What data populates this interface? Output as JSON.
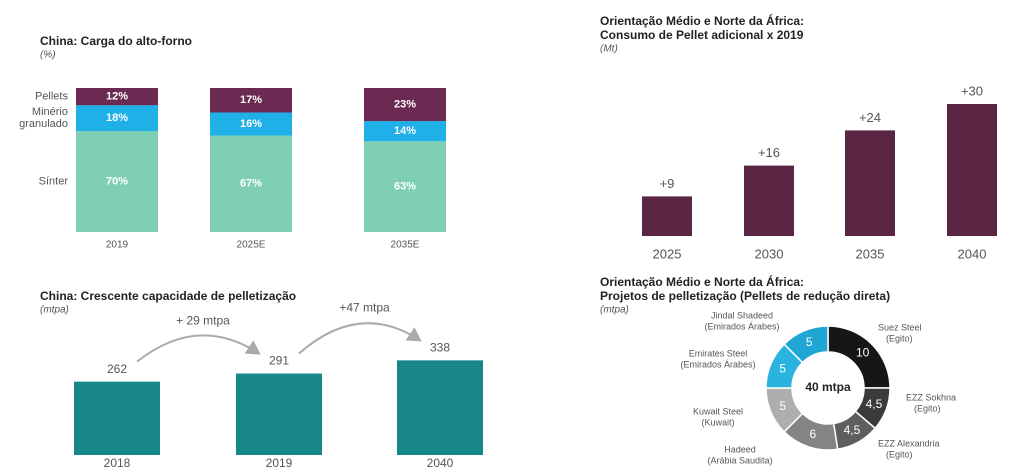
{
  "chart_data": [
    {
      "type": "stacked_bar",
      "title": "China: Carga do alto-forno",
      "subtitle": "(%)",
      "categories": [
        "2019",
        "2025E",
        "2035E"
      ],
      "series": [
        {
          "name": "Sínter",
          "color": "#7fcfb4",
          "values": [
            70,
            67,
            63
          ],
          "value_labels": [
            "70%",
            "67%",
            "63%"
          ]
        },
        {
          "name": "Minério granulado",
          "color": "#1eb0e6",
          "values": [
            18,
            16,
            14
          ],
          "value_labels": [
            "18%",
            "16%",
            "14%"
          ]
        },
        {
          "name": "Pellets",
          "color": "#6b2a52",
          "values": [
            12,
            17,
            23
          ],
          "value_labels": [
            "12%",
            "17%",
            "23%"
          ]
        }
      ]
    },
    {
      "type": "bar",
      "title": "Orientação Médio e Norte da África:",
      "title2": "Consumo de Pellet adicional x 2019",
      "subtitle": "(Mt)",
      "categories": [
        "2025",
        "2030",
        "2035",
        "2040"
      ],
      "values": [
        9,
        16,
        24,
        30
      ],
      "value_labels": [
        "+9",
        "+16",
        "+24",
        "+30"
      ],
      "color": "#5a2643"
    },
    {
      "type": "bar",
      "title": "China: Crescente capacidade de pelletização",
      "subtitle": "(mtpa)",
      "categories": [
        "2018",
        "2019",
        "2040"
      ],
      "values": [
        262,
        291,
        338
      ],
      "color": "#17878a",
      "annotations": [
        "+ 29 mtpa",
        "+47 mtpa"
      ]
    },
    {
      "type": "donut",
      "title": "Orientação Médio e Norte da África:",
      "title2": "Projetos de pelletização (Pellets de redução direta)",
      "subtitle": "(mtpa)",
      "center_label": "40 mtpa",
      "categories": [
        "Suez Steel",
        "EZZ Sokhna",
        "EZZ Alexandria",
        "Hadeed",
        "Kuwait Steel",
        "Emirates Steel",
        "Jindal Shadeed"
      ],
      "regions": [
        "(Egito)",
        "(Egito)",
        "(Egito)",
        "(Arábia Saudita)",
        "(Kuwait)",
        "(Emirados Árabes)",
        "(Emirados Árabes)"
      ],
      "values": [
        10,
        4.5,
        4.5,
        6,
        5,
        5,
        5
      ],
      "value_labels": [
        "10",
        "4,5",
        "4,5",
        "6",
        "5",
        "5",
        "5"
      ],
      "colors": [
        "#161616",
        "#3b3b3b",
        "#5e5e5e",
        "#848484",
        "#aeaeae",
        "#2ab3de",
        "#1fa6d4"
      ]
    }
  ]
}
